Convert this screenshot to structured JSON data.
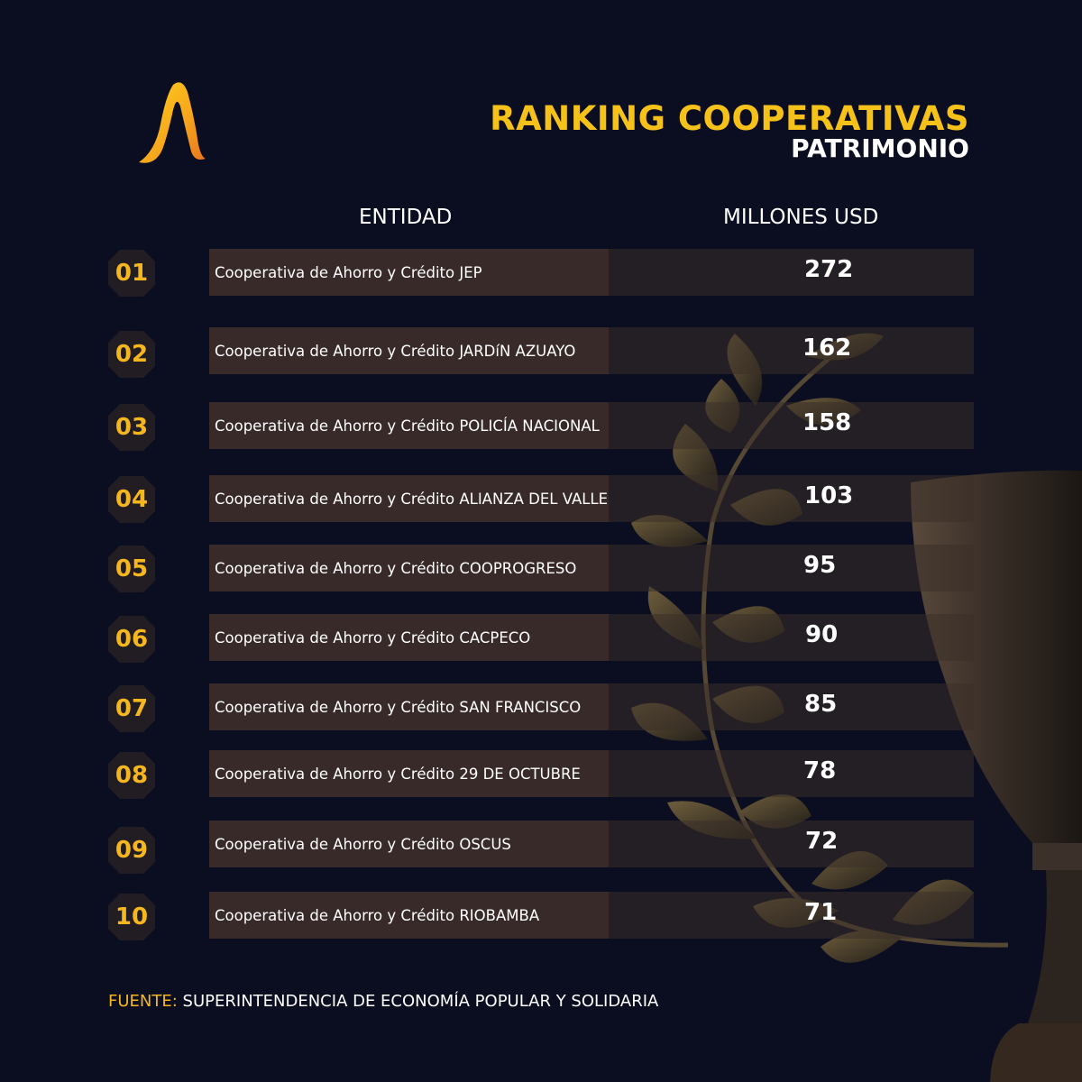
{
  "header": {
    "title": "RANKING COOPERATIVAS",
    "subtitle": "PATRIMONIO"
  },
  "colors": {
    "background": "#0b0d21",
    "accent": "#f6c21a",
    "row_fill": "#3c2d2a",
    "badge_text": "#f5b71d"
  },
  "icons": {
    "logo": "stylized-a-logo",
    "decor": "laurel-trophy"
  },
  "chart_data": {
    "type": "table",
    "columns": [
      "ENTIDAD",
      "MILLONES USD"
    ],
    "ranks": [
      "01",
      "02",
      "03",
      "04",
      "05",
      "06",
      "07",
      "08",
      "09",
      "10"
    ],
    "categories": [
      "Cooperativa de Ahorro y Crédito JEP",
      "Cooperativa de Ahorro y Crédito JARDíN AZUAYO",
      "Cooperativa de Ahorro y Crédito POLICÍA NACIONAL",
      "Cooperativa de Ahorro y Crédito ALIANZA DEL VALLE",
      "Cooperativa de Ahorro y Crédito COOPROGRESO",
      "Cooperativa de Ahorro y Crédito CACPECO",
      "Cooperativa de Ahorro y Crédito SAN FRANCISCO",
      "Cooperativa de Ahorro y Crédito 29 DE OCTUBRE",
      "Cooperativa de Ahorro y Crédito OSCUS",
      "Cooperativa de Ahorro y Crédito RIOBAMBA"
    ],
    "values": [
      272,
      162,
      158,
      103,
      95,
      90,
      85,
      78,
      72,
      71
    ]
  },
  "source": {
    "label": "FUENTE:",
    "text": "SUPERINTENDENCIA DE ECONOMÍA POPULAR Y SOLIDARIA"
  }
}
